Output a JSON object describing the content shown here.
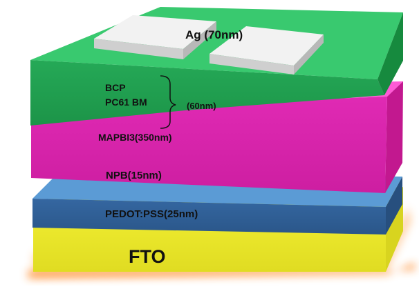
{
  "labels": {
    "ag": "Ag (70nm)",
    "bcp": "BCP",
    "pc61bm": "PC61 BM",
    "etl_thickness": "(60nm)",
    "mapbi3": "MAPBI3(350nm)",
    "npb": "NPB(15nm)",
    "pedot": "PEDOT:PSS(25nm)",
    "fto": "FTO"
  },
  "colors": {
    "fto_top": "#f2ef3a",
    "fto_front": "#e9e62c",
    "fto_glow": "#ff8a2a",
    "pedot_top": "#5b9bd5",
    "pedot_front": "#2f5f96",
    "pink_top": "#ff4fd2",
    "pink_front": "#d821a9",
    "green_top": "#39c96f",
    "green_front": "#1f9e4d",
    "ag_top": "#f2f2f2",
    "ag_side": "#c9c9c9"
  }
}
